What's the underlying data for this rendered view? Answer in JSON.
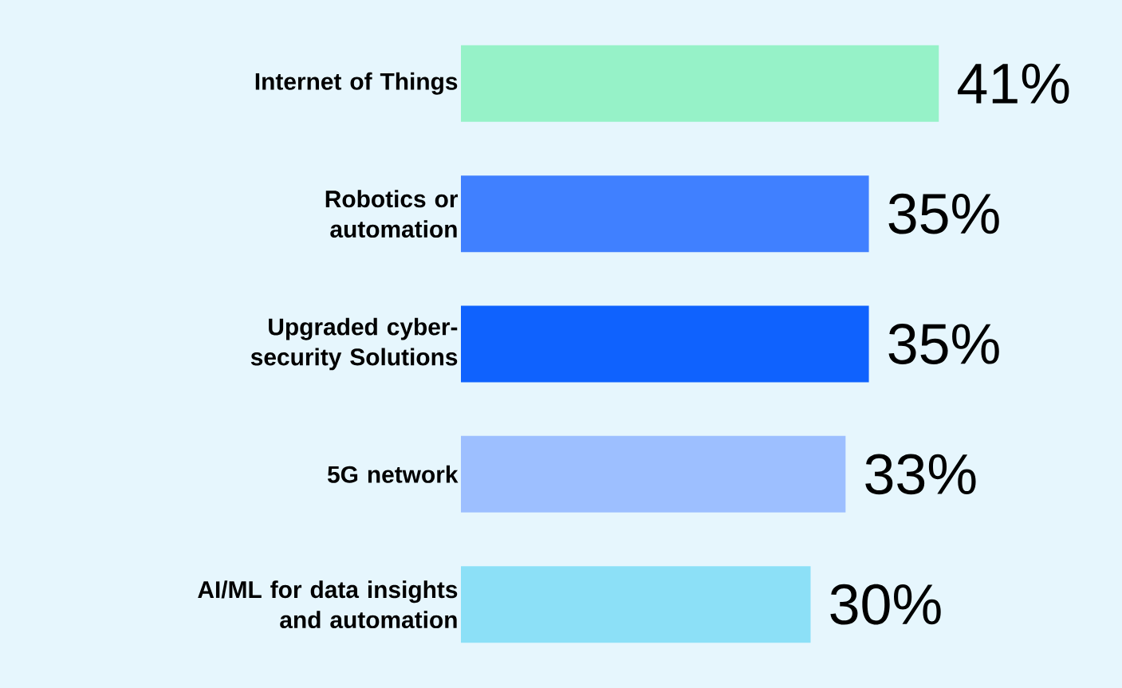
{
  "chart_data": {
    "type": "bar",
    "orientation": "horizontal",
    "categories": [
      "Internet of Things",
      "Robotics or automation",
      "Upgraded cyber-security Solutions",
      "5G network",
      "AI/ML for data insights and automation"
    ],
    "values": [
      41,
      35,
      35,
      33,
      30
    ],
    "colors": [
      "#96f2c8",
      "#4080ff",
      "#0f62fe",
      "#9dbfff",
      "#8ce0f7"
    ],
    "value_labels": [
      "41%",
      "35%",
      "35%",
      "33%",
      "30%"
    ]
  }
}
